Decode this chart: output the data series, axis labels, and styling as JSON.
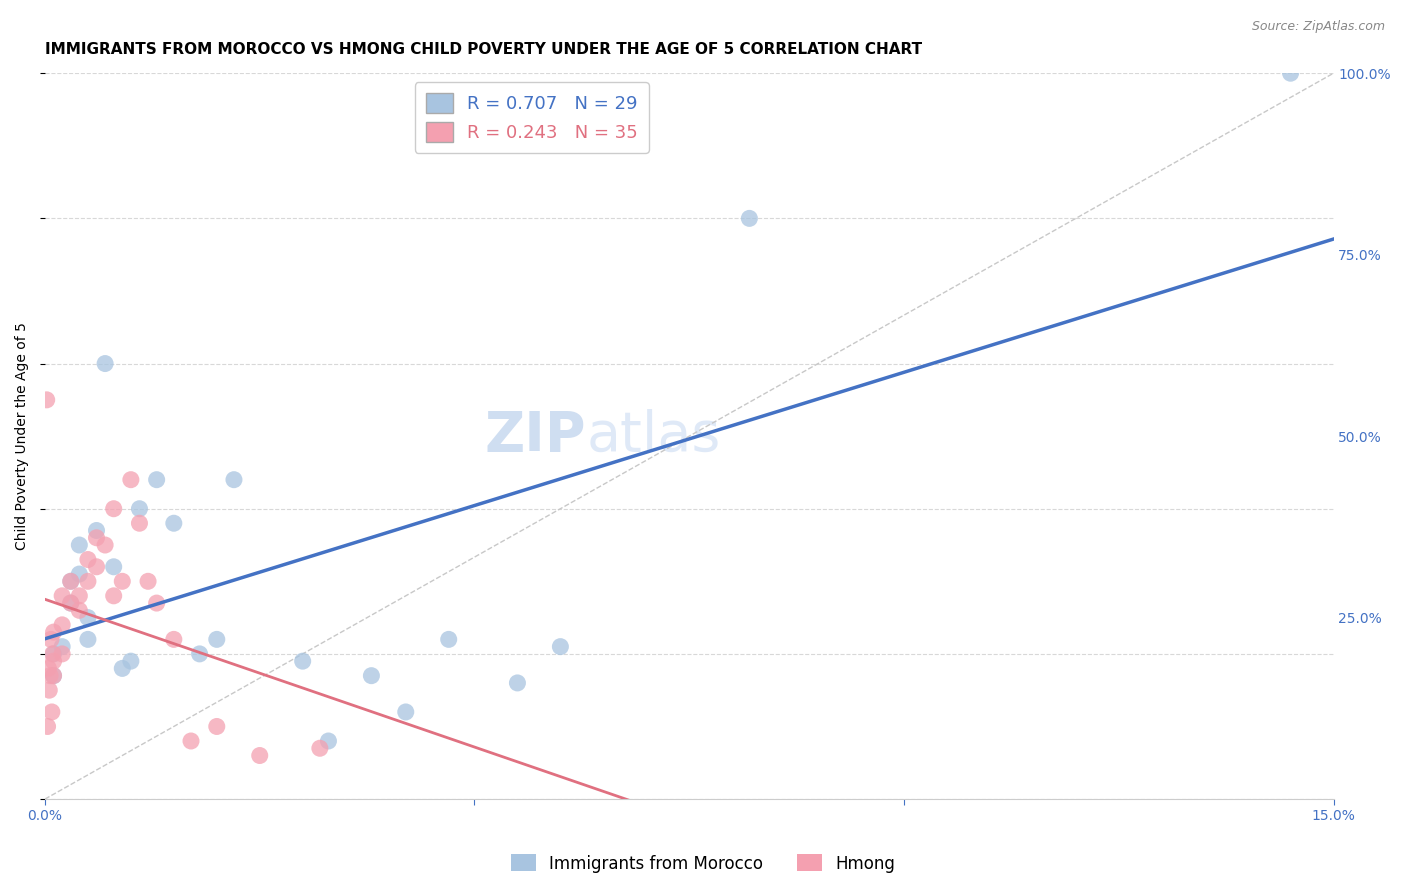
{
  "title": "IMMIGRANTS FROM MOROCCO VS HMONG CHILD POVERTY UNDER THE AGE OF 5 CORRELATION CHART",
  "source": "Source: ZipAtlas.com",
  "ylabel": "Child Poverty Under the Age of 5",
  "x_min": 0.0,
  "x_max": 0.15,
  "y_min": 0.0,
  "y_max": 1.0,
  "morocco_color": "#a8c4e0",
  "hmong_color": "#f4a0b0",
  "morocco_line_color": "#4472c4",
  "hmong_line_color": "#e07080",
  "diagonal_color": "#c8c8c8",
  "R_morocco": 0.707,
  "N_morocco": 29,
  "R_hmong": 0.243,
  "N_hmong": 35,
  "watermark_zip": "ZIP",
  "watermark_atlas": "atlas",
  "morocco_x": [
    0.001,
    0.001,
    0.002,
    0.003,
    0.003,
    0.004,
    0.004,
    0.005,
    0.005,
    0.006,
    0.007,
    0.008,
    0.009,
    0.01,
    0.011,
    0.013,
    0.015,
    0.018,
    0.02,
    0.022,
    0.03,
    0.033,
    0.038,
    0.042,
    0.047,
    0.055,
    0.06,
    0.082,
    0.145
  ],
  "morocco_y": [
    0.17,
    0.2,
    0.21,
    0.27,
    0.3,
    0.31,
    0.35,
    0.22,
    0.25,
    0.37,
    0.6,
    0.32,
    0.18,
    0.19,
    0.4,
    0.44,
    0.38,
    0.2,
    0.22,
    0.44,
    0.19,
    0.08,
    0.17,
    0.12,
    0.22,
    0.16,
    0.21,
    0.8,
    1.0
  ],
  "hmong_x": [
    0.0002,
    0.0003,
    0.0004,
    0.0005,
    0.0006,
    0.0007,
    0.0008,
    0.0009,
    0.001,
    0.001,
    0.001,
    0.002,
    0.002,
    0.002,
    0.003,
    0.003,
    0.004,
    0.004,
    0.005,
    0.005,
    0.006,
    0.006,
    0.007,
    0.008,
    0.008,
    0.009,
    0.01,
    0.011,
    0.012,
    0.013,
    0.015,
    0.017,
    0.02,
    0.025,
    0.032
  ],
  "hmong_y": [
    0.55,
    0.1,
    0.18,
    0.15,
    0.17,
    0.22,
    0.12,
    0.2,
    0.23,
    0.19,
    0.17,
    0.28,
    0.24,
    0.2,
    0.27,
    0.3,
    0.26,
    0.28,
    0.33,
    0.3,
    0.36,
    0.32,
    0.35,
    0.4,
    0.28,
    0.3,
    0.44,
    0.38,
    0.3,
    0.27,
    0.22,
    0.08,
    0.1,
    0.06,
    0.07
  ],
  "title_fontsize": 11,
  "axis_label_fontsize": 10,
  "tick_fontsize": 10,
  "legend_fontsize": 13,
  "watermark_fontsize": 40,
  "background_color": "#ffffff",
  "grid_color": "#d8d8d8",
  "axis_color": "#4472c4"
}
